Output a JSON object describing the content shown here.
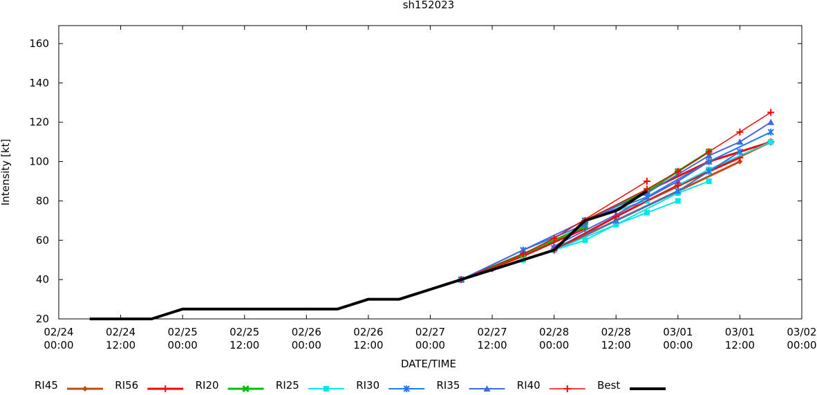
{
  "chart_data": {
    "type": "line",
    "title": "sh152023",
    "xlabel": "DATE/TIME",
    "ylabel": "Intensity [kt]",
    "ylim": [
      20,
      170
    ],
    "xlim": [
      "02/24 00:00",
      "03/02 00:00"
    ],
    "yticks": [
      20,
      40,
      60,
      80,
      100,
      120,
      140,
      160
    ],
    "xticks": [
      [
        "02/24",
        "00:00"
      ],
      [
        "02/24",
        "12:00"
      ],
      [
        "02/25",
        "00:00"
      ],
      [
        "02/25",
        "12:00"
      ],
      [
        "02/26",
        "00:00"
      ],
      [
        "02/26",
        "12:00"
      ],
      [
        "02/27",
        "00:00"
      ],
      [
        "02/27",
        "12:00"
      ],
      [
        "02/28",
        "00:00"
      ],
      [
        "02/28",
        "12:00"
      ],
      [
        "03/01",
        "00:00"
      ],
      [
        "03/01",
        "12:00"
      ],
      [
        "03/02",
        "00:00"
      ]
    ],
    "grid": false,
    "legend": "bottom",
    "series": [
      {
        "name": "RI45",
        "color": "#c04a10",
        "marker": "diamond",
        "width": 3,
        "forecasts": [
          [
            [
              "02/27 06:00",
              40
            ],
            [
              "02/27 12:00",
              45
            ],
            [
              "02/27 18:00",
              50
            ],
            [
              "02/28 00:00",
              55
            ]
          ],
          [
            [
              "02/28 00:00",
              55
            ],
            [
              "02/28 12:00",
              70
            ],
            [
              "03/01 00:00",
              85
            ],
            [
              "03/01 12:00",
              100
            ]
          ],
          [
            [
              "02/28 06:00",
              70
            ],
            [
              "02/28 18:00",
              80
            ],
            [
              "03/01 06:00",
              95
            ],
            [
              "03/01 18:00",
              110
            ]
          ]
        ]
      },
      {
        "name": "RI56",
        "color": "#ff0000",
        "marker": "plus",
        "width": 3,
        "forecasts": [
          [
            [
              "02/27 06:00",
              40
            ],
            [
              "02/27 18:00",
              52
            ],
            [
              "02/28 06:00",
              66
            ]
          ],
          [
            [
              "02/28 00:00",
              55
            ],
            [
              "02/28 12:00",
              72
            ],
            [
              "03/01 00:00",
              88
            ],
            [
              "03/01 12:00",
              102
            ]
          ],
          [
            [
              "02/28 06:00",
              70
            ],
            [
              "02/28 18:00",
              85
            ],
            [
              "03/01 06:00",
              100
            ],
            [
              "03/01 18:00",
              110
            ]
          ]
        ]
      },
      {
        "name": "RI20",
        "color": "#00c000",
        "marker": "xsquare",
        "width": 3,
        "forecasts": [
          [
            [
              "02/27 06:00",
              40
            ],
            [
              "02/27 18:00",
              53
            ],
            [
              "02/28 06:00",
              67
            ]
          ],
          [
            [
              "02/28 06:00",
              70
            ],
            [
              "02/28 18:00",
              85
            ],
            [
              "03/01 00:00",
              95
            ],
            [
              "03/01 06:00",
              105
            ]
          ]
        ]
      },
      {
        "name": "RI25",
        "color": "#00e8e8",
        "marker": "square",
        "width": 2,
        "forecasts": [
          [
            [
              "02/27 06:00",
              40
            ],
            [
              "02/27 18:00",
              50
            ],
            [
              "02/28 06:00",
              60
            ],
            [
              "02/28 12:00",
              68
            ],
            [
              "02/28 18:00",
              74
            ],
            [
              "03/01 00:00",
              80
            ]
          ],
          [
            [
              "02/28 00:00",
              55
            ],
            [
              "02/28 12:00",
              68
            ],
            [
              "03/01 00:00",
              84
            ],
            [
              "03/01 06:00",
              90
            ]
          ],
          [
            [
              "02/28 06:00",
              70
            ],
            [
              "02/28 18:00",
              80
            ],
            [
              "03/01 06:00",
              96
            ],
            [
              "03/01 18:00",
              110
            ]
          ]
        ]
      },
      {
        "name": "RI30",
        "color": "#1e7cf0",
        "marker": "asterisk",
        "width": 2,
        "forecasts": [
          [
            [
              "02/27 06:00",
              40
            ],
            [
              "02/27 18:00",
              55
            ],
            [
              "02/28 06:00",
              68
            ]
          ],
          [
            [
              "02/28 00:00",
              56
            ],
            [
              "02/28 12:00",
              70
            ],
            [
              "03/01 00:00",
              85
            ],
            [
              "03/01 06:00",
              95
            ],
            [
              "03/01 12:00",
              105
            ]
          ],
          [
            [
              "02/28 06:00",
              70
            ],
            [
              "02/28 18:00",
              82
            ],
            [
              "03/01 06:00",
              100
            ],
            [
              "03/01 18:00",
              115
            ]
          ]
        ]
      },
      {
        "name": "RI35",
        "color": "#4169e1",
        "marker": "triangle",
        "width": 2,
        "forecasts": [
          [
            [
              "02/27 06:00",
              40
            ],
            [
              "02/27 18:00",
              55
            ],
            [
              "02/28 06:00",
              70
            ]
          ],
          [
            [
              "02/28 00:00",
              57
            ],
            [
              "02/28 12:00",
              73
            ],
            [
              "03/01 00:00",
              90
            ],
            [
              "03/01 06:00",
              100
            ]
          ],
          [
            [
              "02/28 06:00",
              70
            ],
            [
              "02/28 18:00",
              84
            ],
            [
              "03/01 06:00",
              103
            ],
            [
              "03/01 12:00",
              110
            ],
            [
              "03/01 18:00",
              120
            ]
          ]
        ]
      },
      {
        "name": "RI40",
        "color": "#ff0000",
        "marker": "plus",
        "width": 1.5,
        "forecasts": [
          [
            [
              "02/27 06:00",
              40
            ],
            [
              "02/27 18:00",
              53
            ],
            [
              "02/28 00:00",
              61
            ],
            [
              "02/28 18:00",
              90
            ]
          ],
          [
            [
              "02/28 00:00",
              55
            ],
            [
              "02/28 12:00",
              72
            ],
            [
              "03/01 00:00",
              88
            ]
          ],
          [
            [
              "02/28 06:00",
              70
            ],
            [
              "02/28 18:00",
              86
            ],
            [
              "03/01 00:00",
              95
            ],
            [
              "03/01 06:00",
              105
            ],
            [
              "03/01 12:00",
              115
            ],
            [
              "03/01 18:00",
              125
            ]
          ]
        ]
      },
      {
        "name": "Best",
        "color": "#000000",
        "marker": "none",
        "width": 4,
        "forecasts": [
          [
            [
              "02/24 06:00",
              20
            ],
            [
              "02/24 18:00",
              20
            ],
            [
              "02/25 00:00",
              25
            ],
            [
              "02/26 06:00",
              25
            ],
            [
              "02/26 12:00",
              30
            ],
            [
              "02/26 18:00",
              30
            ],
            [
              "02/27 06:00",
              40
            ],
            [
              "02/27 12:00",
              45
            ],
            [
              "02/27 18:00",
              50
            ],
            [
              "02/28 00:00",
              55
            ],
            [
              "02/28 06:00",
              70
            ],
            [
              "02/28 12:00",
              75
            ],
            [
              "02/28 18:00",
              85
            ]
          ]
        ]
      }
    ]
  }
}
